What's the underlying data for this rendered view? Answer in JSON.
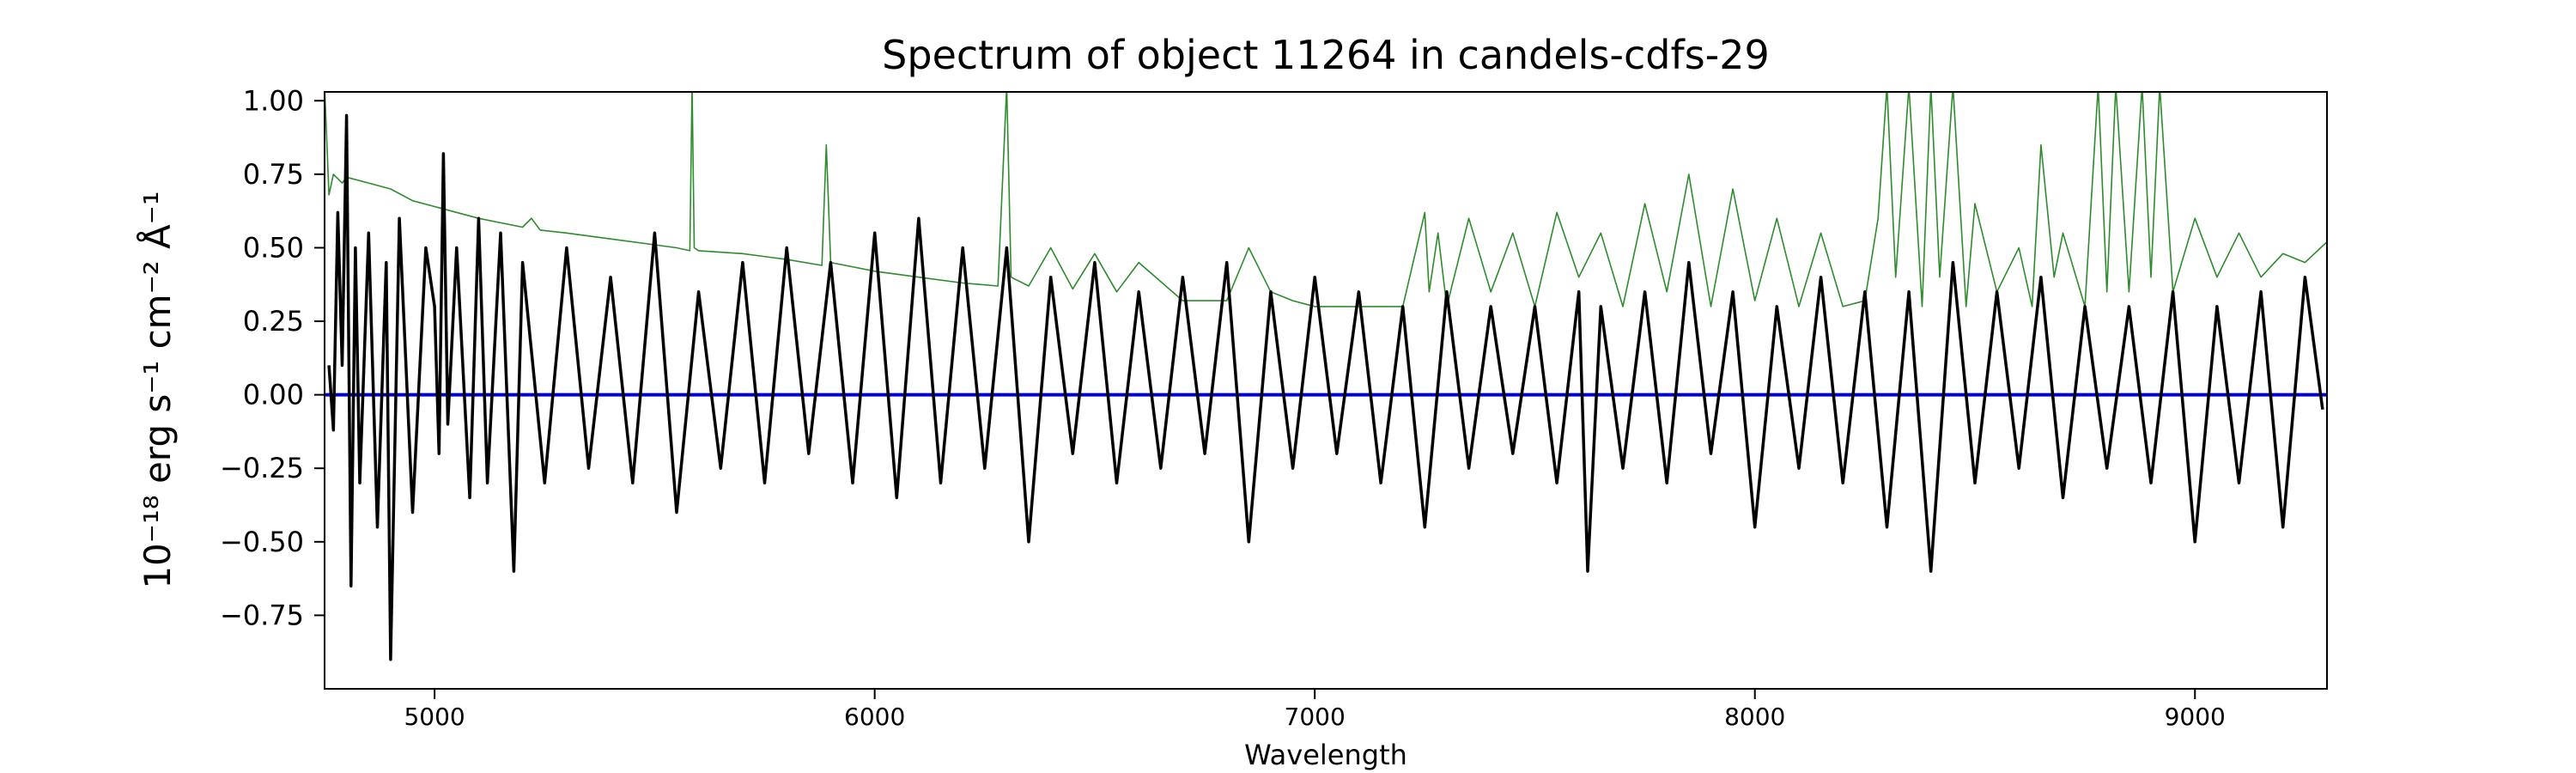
{
  "chart_data": {
    "type": "line",
    "title": "Spectrum of object 11264 in candels-cdfs-29",
    "xlabel": "Wavelength",
    "ylabel": "10⁻¹⁸ erg s⁻¹ cm⁻² Å⁻¹",
    "xlim": [
      4750,
      9300
    ],
    "ylim": [
      -1.0,
      1.03
    ],
    "x_ticks": [
      5000,
      6000,
      7000,
      8000,
      9000
    ],
    "x_tick_labels": [
      "5000",
      "6000",
      "7000",
      "8000",
      "9000"
    ],
    "y_ticks": [
      1.0,
      0.75,
      0.5,
      0.25,
      0.0,
      -0.25,
      -0.5,
      -0.75
    ],
    "y_tick_labels": [
      "1.00",
      "0.75",
      "0.50",
      "0.25",
      "0.00",
      "−0.25",
      "−0.50",
      "−0.75"
    ],
    "grid": false,
    "legend": "none",
    "series": [
      {
        "role": "flux",
        "color": "#000000",
        "x": [
          4760,
          4770,
          4780,
          4790,
          4800,
          4810,
          4820,
          4830,
          4850,
          4870,
          4890,
          4900,
          4920,
          4950,
          4980,
          5000,
          5010,
          5020,
          5030,
          5050,
          5080,
          5100,
          5120,
          5150,
          5180,
          5200,
          5250,
          5300,
          5350,
          5400,
          5450,
          5500,
          5550,
          5600,
          5650,
          5700,
          5750,
          5800,
          5850,
          5900,
          5950,
          6000,
          6050,
          6100,
          6150,
          6200,
          6250,
          6300,
          6350,
          6400,
          6450,
          6500,
          6550,
          6600,
          6650,
          6700,
          6750,
          6800,
          6850,
          6900,
          6950,
          7000,
          7050,
          7100,
          7150,
          7200,
          7250,
          7300,
          7350,
          7400,
          7450,
          7500,
          7550,
          7600,
          7620,
          7650,
          7700,
          7750,
          7800,
          7850,
          7900,
          7950,
          8000,
          8050,
          8100,
          8150,
          8200,
          8250,
          8300,
          8350,
          8400,
          8450,
          8500,
          8550,
          8600,
          8650,
          8700,
          8750,
          8800,
          8850,
          8900,
          8950,
          9000,
          9050,
          9100,
          9150,
          9200,
          9250,
          9290
        ],
        "y": [
          0.1,
          -0.12,
          0.62,
          0.1,
          0.95,
          -0.65,
          0.5,
          -0.3,
          0.55,
          -0.45,
          0.45,
          -0.9,
          0.6,
          -0.4,
          0.5,
          0.3,
          -0.2,
          0.82,
          -0.1,
          0.5,
          -0.35,
          0.6,
          -0.3,
          0.55,
          -0.6,
          0.45,
          -0.3,
          0.5,
          -0.25,
          0.4,
          -0.3,
          0.55,
          -0.4,
          0.35,
          -0.25,
          0.45,
          -0.3,
          0.5,
          -0.2,
          0.45,
          -0.3,
          0.55,
          -0.35,
          0.6,
          -0.3,
          0.5,
          -0.25,
          0.5,
          -0.5,
          0.4,
          -0.2,
          0.45,
          -0.3,
          0.35,
          -0.25,
          0.4,
          -0.2,
          0.45,
          -0.5,
          0.35,
          -0.25,
          0.4,
          -0.2,
          0.35,
          -0.3,
          0.3,
          -0.45,
          0.35,
          -0.25,
          0.3,
          -0.2,
          0.3,
          -0.3,
          0.35,
          -0.6,
          0.3,
          -0.25,
          0.35,
          -0.3,
          0.45,
          -0.2,
          0.35,
          -0.45,
          0.3,
          -0.25,
          0.4,
          -0.3,
          0.35,
          -0.45,
          0.35,
          -0.6,
          0.45,
          -0.3,
          0.35,
          -0.25,
          0.4,
          -0.35,
          0.3,
          -0.25,
          0.3,
          -0.3,
          0.35,
          -0.5,
          0.3,
          -0.3,
          0.35,
          -0.45,
          0.4,
          -0.05
        ]
      },
      {
        "role": "error",
        "color": "#2e8b2e",
        "x": [
          4750,
          4760,
          4770,
          4790,
          4800,
          4850,
          4900,
          4950,
          5000,
          5100,
          5200,
          5220,
          5240,
          5300,
          5400,
          5500,
          5550,
          5580,
          5585,
          5590,
          5600,
          5700,
          5800,
          5880,
          5890,
          5900,
          6000,
          6100,
          6200,
          6280,
          6300,
          6310,
          6350,
          6400,
          6450,
          6500,
          6550,
          6600,
          6700,
          6800,
          6850,
          6900,
          6950,
          7000,
          7100,
          7200,
          7250,
          7260,
          7280,
          7300,
          7350,
          7400,
          7450,
          7500,
          7550,
          7600,
          7650,
          7700,
          7750,
          7800,
          7850,
          7900,
          7950,
          8000,
          8050,
          8100,
          8150,
          8200,
          8250,
          8280,
          8300,
          8320,
          8350,
          8380,
          8400,
          8420,
          8450,
          8480,
          8500,
          8550,
          8600,
          8630,
          8650,
          8680,
          8700,
          8750,
          8780,
          8800,
          8820,
          8850,
          8880,
          8900,
          8920,
          8950,
          9000,
          9050,
          9100,
          9150,
          9200,
          9250,
          9300
        ],
        "y": [
          1.05,
          0.68,
          0.75,
          0.72,
          0.74,
          0.72,
          0.7,
          0.66,
          0.64,
          0.6,
          0.57,
          0.6,
          0.56,
          0.55,
          0.53,
          0.51,
          0.5,
          0.49,
          1.05,
          0.5,
          0.49,
          0.48,
          0.46,
          0.44,
          0.85,
          0.45,
          0.42,
          0.4,
          0.38,
          0.37,
          1.05,
          0.4,
          0.37,
          0.5,
          0.36,
          0.48,
          0.35,
          0.45,
          0.32,
          0.32,
          0.5,
          0.35,
          0.32,
          0.3,
          0.3,
          0.3,
          0.62,
          0.35,
          0.55,
          0.3,
          0.6,
          0.35,
          0.55,
          0.3,
          0.62,
          0.4,
          0.55,
          0.3,
          0.65,
          0.35,
          0.75,
          0.3,
          0.7,
          0.32,
          0.6,
          0.3,
          0.55,
          0.3,
          0.32,
          0.6,
          1.05,
          0.4,
          1.05,
          0.3,
          1.05,
          0.4,
          1.05,
          0.3,
          0.65,
          0.35,
          0.5,
          0.3,
          0.85,
          0.4,
          0.55,
          0.3,
          1.05,
          0.35,
          1.05,
          0.35,
          1.05,
          0.4,
          1.05,
          0.35,
          0.6,
          0.4,
          0.55,
          0.4,
          0.48,
          0.45,
          0.52
        ]
      },
      {
        "role": "zero",
        "color": "#0000cc",
        "x": [
          4750,
          9300
        ],
        "y": [
          0,
          0
        ]
      }
    ]
  }
}
